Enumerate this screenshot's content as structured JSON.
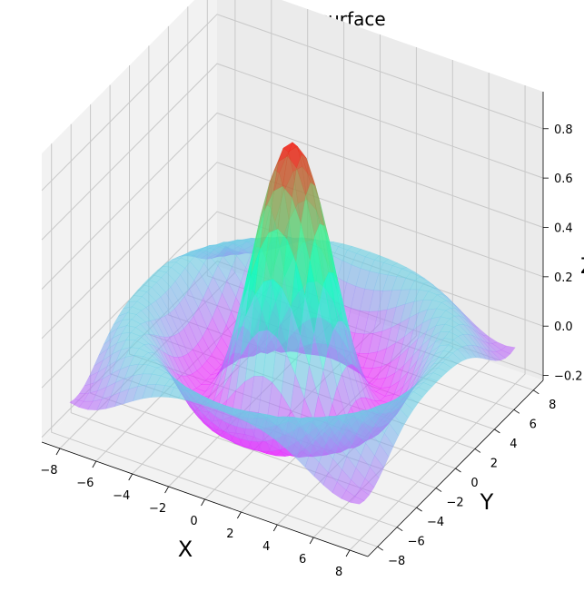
{
  "chart_data": {
    "type": "surface3d",
    "title": "RBF resulting surface",
    "xlabel": "X",
    "ylabel": "Y",
    "zlabel": "Z",
    "xlim": [
      -9,
      9
    ],
    "ylim": [
      -9,
      9
    ],
    "zlim": [
      -0.22,
      0.95
    ],
    "xticks": [
      -8,
      -6,
      -4,
      -2,
      0,
      2,
      4,
      6,
      8
    ],
    "yticks": [
      -8,
      -6,
      -4,
      -2,
      0,
      2,
      4,
      6,
      8
    ],
    "zticks": [
      -0.2,
      0.0,
      0.2,
      0.4,
      0.6,
      0.8
    ],
    "xtick_labels": [
      "−8",
      "−6",
      "−4",
      "−2",
      "0",
      "2",
      "4",
      "6",
      "8"
    ],
    "ytick_labels": [
      "−8",
      "−6",
      "−4",
      "−2",
      "0",
      "2",
      "4",
      "6",
      "8"
    ],
    "ztick_labels": [
      "−0.2",
      "0.0",
      "0.2",
      "0.4",
      "0.6",
      "0.8"
    ],
    "colormap": "rainbow",
    "alpha": 0.6,
    "grid": true,
    "surface": {
      "x_range": [
        -8,
        8
      ],
      "y_range": [
        -8,
        8
      ],
      "function": "sin(sqrt(x^2+y^2)) / sqrt(x^2+y^2)",
      "peak": {
        "x": 0,
        "y": 0,
        "z": 0.87
      },
      "min_z": -0.2
    }
  }
}
